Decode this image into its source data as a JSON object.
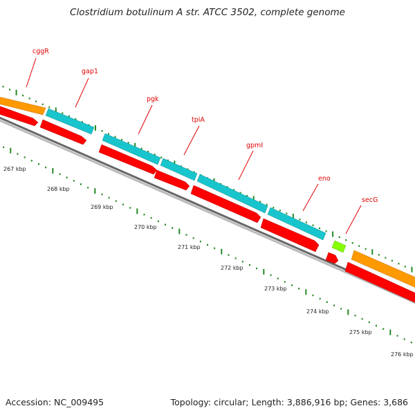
{
  "title": "Clostridium botulinum A str. ATCC 3502, complete genome",
  "accession": "Accession: NC_009495",
  "summary": "Topology: circular; Length: 3,886,916 bp; Genes: 3,686",
  "colors": {
    "backbone": "#8c8c8c",
    "cds": "#ff0000",
    "gene_cyan": "#19c5cc",
    "gene_orange": "#ff9900",
    "gene_green": "#88ff00",
    "ticks": "#228822",
    "label": "#e00000"
  },
  "scale": {
    "labels": [
      "267 kbp",
      "268 kbp",
      "269 kbp",
      "270 kbp",
      "271 kbp",
      "272 kbp",
      "273 kbp",
      "274 kbp",
      "275 kbp",
      "276 kbp"
    ]
  },
  "genes": [
    {
      "name": "cggR",
      "label": "cggR"
    },
    {
      "name": "gap1",
      "label": "gap1"
    },
    {
      "name": "pgk",
      "label": "pgk"
    },
    {
      "name": "tpiA",
      "label": "tpiA"
    },
    {
      "name": "gpmI",
      "label": "gpmI"
    },
    {
      "name": "eno",
      "label": "eno"
    },
    {
      "name": "secG",
      "label": "secG"
    }
  ]
}
